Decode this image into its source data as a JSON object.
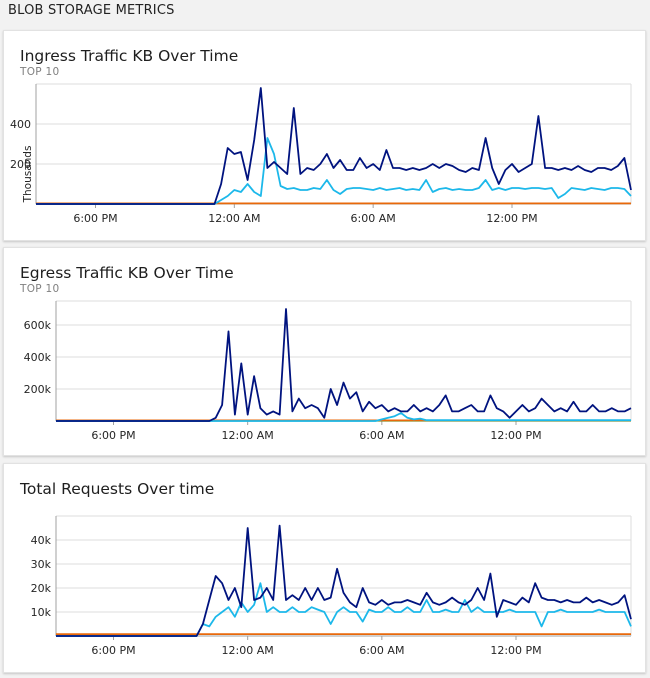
{
  "page": {
    "header": "BLOB STORAGE METRICS"
  },
  "colors": {
    "navy": "#00137f",
    "cyan": "#1cb8ea",
    "orange": "#e8690b",
    "green": "#5aa53f",
    "grid": "#dddddd",
    "axis": "#a0a0a0"
  },
  "chart_data": [
    {
      "type": "line",
      "title": "Ingress Traffic KB Over Time",
      "subtitle": "TOP 10",
      "ylabel": "Thousands",
      "ylim": [
        0,
        600
      ],
      "yticks": [
        200,
        400
      ],
      "ytick_labels": [
        "200",
        "400"
      ],
      "xlim": [
        0,
        90
      ],
      "xticks": [
        9,
        30,
        51,
        72
      ],
      "xtick_labels": [
        "6:00 PM",
        "12:00 AM",
        "6:00 AM",
        "12:00 PM"
      ],
      "grid": true,
      "series": [
        {
          "color": "navy",
          "x": [
            0,
            27,
            28,
            29,
            30,
            31,
            32,
            33,
            34,
            35,
            36,
            37,
            38,
            39,
            40,
            41,
            42,
            43,
            44,
            45,
            46,
            47,
            48,
            49,
            50,
            51,
            52,
            53,
            54,
            55,
            56,
            57,
            58,
            59,
            60,
            61,
            62,
            63,
            64,
            65,
            66,
            67,
            68,
            69,
            70,
            71,
            72,
            73,
            74,
            75,
            76,
            77,
            78,
            79,
            80,
            81,
            82,
            83,
            84,
            85,
            86,
            87,
            88,
            89,
            90
          ],
          "y": [
            0,
            0,
            100,
            280,
            250,
            260,
            120,
            320,
            580,
            180,
            210,
            180,
            150,
            480,
            150,
            180,
            170,
            200,
            250,
            180,
            220,
            170,
            170,
            230,
            180,
            200,
            170,
            270,
            180,
            180,
            170,
            180,
            170,
            180,
            200,
            180,
            200,
            190,
            170,
            160,
            180,
            170,
            330,
            180,
            100,
            170,
            200,
            160,
            180,
            200,
            440,
            180,
            180,
            170,
            180,
            170,
            190,
            170,
            160,
            180,
            180,
            170,
            190,
            230,
            70
          ]
        },
        {
          "color": "cyan",
          "x": [
            0,
            27,
            28,
            29,
            30,
            31,
            32,
            33,
            34,
            35,
            36,
            37,
            38,
            39,
            40,
            41,
            42,
            43,
            44,
            45,
            46,
            47,
            48,
            49,
            50,
            51,
            52,
            53,
            54,
            55,
            56,
            57,
            58,
            59,
            60,
            61,
            62,
            63,
            64,
            65,
            66,
            67,
            68,
            69,
            70,
            71,
            72,
            73,
            74,
            75,
            76,
            77,
            78,
            79,
            80,
            81,
            82,
            83,
            84,
            85,
            86,
            87,
            88,
            89,
            90
          ],
          "y": [
            0,
            0,
            20,
            40,
            70,
            60,
            100,
            60,
            40,
            330,
            250,
            90,
            75,
            80,
            70,
            70,
            80,
            75,
            120,
            70,
            50,
            75,
            80,
            80,
            75,
            70,
            80,
            70,
            75,
            80,
            70,
            75,
            70,
            120,
            60,
            75,
            80,
            70,
            75,
            70,
            70,
            80,
            120,
            70,
            80,
            70,
            80,
            80,
            75,
            80,
            80,
            75,
            80,
            30,
            50,
            80,
            75,
            70,
            80,
            75,
            70,
            80,
            80,
            75,
            40
          ]
        },
        {
          "color": "orange",
          "x": [
            0,
            90
          ],
          "y": [
            3,
            3
          ]
        }
      ]
    },
    {
      "type": "line",
      "title": "Egress Traffic KB Over Time",
      "subtitle": "TOP 10",
      "ylabel": "",
      "ylim": [
        0,
        750000
      ],
      "yticks": [
        200000,
        400000,
        600000
      ],
      "ytick_labels": [
        "200k",
        "400k",
        "600k"
      ],
      "xlim": [
        0,
        90
      ],
      "xticks": [
        9,
        30,
        51,
        72
      ],
      "xtick_labels": [
        "6:00 PM",
        "12:00 AM",
        "6:00 AM",
        "12:00 PM"
      ],
      "grid": true,
      "series": [
        {
          "color": "navy",
          "x": [
            0,
            24,
            25,
            26,
            27,
            28,
            29,
            30,
            31,
            32,
            33,
            34,
            35,
            36,
            37,
            38,
            39,
            40,
            41,
            42,
            43,
            44,
            45,
            46,
            47,
            48,
            49,
            50,
            51,
            52,
            53,
            54,
            55,
            56,
            57,
            58,
            59,
            60,
            61,
            62,
            63,
            64,
            65,
            66,
            67,
            68,
            69,
            70,
            71,
            72,
            73,
            74,
            75,
            76,
            77,
            78,
            79,
            80,
            81,
            82,
            83,
            84,
            85,
            86,
            87,
            88,
            89,
            90
          ],
          "y": [
            0,
            0,
            20000,
            100000,
            560000,
            40000,
            360000,
            40000,
            280000,
            80000,
            40000,
            60000,
            40000,
            700000,
            60000,
            140000,
            80000,
            100000,
            80000,
            20000,
            200000,
            100000,
            240000,
            140000,
            180000,
            60000,
            120000,
            80000,
            100000,
            60000,
            80000,
            60000,
            60000,
            100000,
            60000,
            80000,
            60000,
            100000,
            160000,
            60000,
            60000,
            80000,
            100000,
            60000,
            60000,
            160000,
            80000,
            60000,
            20000,
            60000,
            100000,
            60000,
            80000,
            140000,
            100000,
            60000,
            80000,
            60000,
            120000,
            60000,
            60000,
            100000,
            60000,
            60000,
            80000,
            60000,
            60000,
            80000
          ]
        },
        {
          "color": "cyan",
          "x": [
            0,
            50,
            51,
            52,
            53,
            54,
            55,
            56,
            57,
            58,
            90
          ],
          "y": [
            0,
            0,
            10000,
            20000,
            30000,
            50000,
            20000,
            10000,
            15000,
            5000,
            5000
          ]
        },
        {
          "color": "orange",
          "x": [
            0,
            90
          ],
          "y": [
            4000,
            4000
          ]
        },
        {
          "color": "green",
          "x": [
            0,
            90
          ],
          "y": [
            2000,
            2000
          ]
        }
      ]
    },
    {
      "type": "line",
      "title": "Total Requests Over time",
      "subtitle": "",
      "ylabel": "",
      "ylim": [
        0,
        50000
      ],
      "yticks": [
        10000,
        20000,
        30000,
        40000
      ],
      "ytick_labels": [
        "10k",
        "20k",
        "30k",
        "40k"
      ],
      "xlim": [
        0,
        90
      ],
      "xticks": [
        9,
        30,
        51,
        72
      ],
      "xtick_labels": [
        "6:00 PM",
        "12:00 AM",
        "6:00 AM",
        "12:00 PM"
      ],
      "grid": true,
      "series": [
        {
          "color": "navy",
          "x": [
            0,
            22,
            23,
            24,
            25,
            26,
            27,
            28,
            29,
            30,
            31,
            32,
            33,
            34,
            35,
            36,
            37,
            38,
            39,
            40,
            41,
            42,
            43,
            44,
            45,
            46,
            47,
            48,
            49,
            50,
            51,
            52,
            53,
            54,
            55,
            56,
            57,
            58,
            59,
            60,
            61,
            62,
            63,
            64,
            65,
            66,
            67,
            68,
            69,
            70,
            71,
            72,
            73,
            74,
            75,
            76,
            77,
            78,
            79,
            80,
            81,
            82,
            83,
            84,
            85,
            86,
            87,
            88,
            89,
            90
          ],
          "y": [
            0,
            0,
            5000,
            15000,
            25000,
            22000,
            15000,
            20000,
            12000,
            45000,
            15000,
            16000,
            20000,
            15000,
            46000,
            15000,
            17000,
            15000,
            20000,
            15000,
            20000,
            15000,
            16000,
            28000,
            18000,
            14000,
            12000,
            20000,
            14000,
            13000,
            15000,
            13000,
            14000,
            14000,
            15000,
            14000,
            13000,
            18000,
            14000,
            13000,
            14000,
            16000,
            14000,
            13000,
            15000,
            20000,
            15000,
            26000,
            8000,
            15000,
            14000,
            13000,
            16000,
            14000,
            22000,
            16000,
            15000,
            15000,
            14000,
            15000,
            14000,
            14000,
            16000,
            14000,
            15000,
            14000,
            13000,
            14000,
            17000,
            7000
          ]
        },
        {
          "color": "cyan",
          "x": [
            0,
            22,
            23,
            24,
            25,
            26,
            27,
            28,
            29,
            30,
            31,
            32,
            33,
            34,
            35,
            36,
            37,
            38,
            39,
            40,
            41,
            42,
            43,
            44,
            45,
            46,
            47,
            48,
            49,
            50,
            51,
            52,
            53,
            54,
            55,
            56,
            57,
            58,
            59,
            60,
            61,
            62,
            63,
            64,
            65,
            66,
            67,
            68,
            69,
            70,
            71,
            72,
            73,
            74,
            75,
            76,
            77,
            78,
            79,
            80,
            81,
            82,
            83,
            84,
            85,
            86,
            87,
            88,
            89,
            90
          ],
          "y": [
            0,
            0,
            5000,
            4000,
            8000,
            10000,
            12000,
            8000,
            14000,
            10000,
            13000,
            22000,
            10000,
            12000,
            10000,
            10000,
            12000,
            10000,
            10000,
            12000,
            11000,
            10000,
            5000,
            10000,
            12000,
            10000,
            10000,
            6000,
            11000,
            10000,
            10000,
            12000,
            10000,
            10000,
            12000,
            10000,
            10000,
            15000,
            10000,
            10000,
            11000,
            10000,
            10000,
            15000,
            10000,
            12000,
            10000,
            10000,
            10000,
            10000,
            11000,
            10000,
            10000,
            10000,
            10000,
            4000,
            10000,
            10000,
            11000,
            10000,
            10000,
            10000,
            10000,
            10000,
            11000,
            10000,
            10000,
            10000,
            10000,
            4000
          ]
        },
        {
          "color": "orange",
          "x": [
            0,
            90
          ],
          "y": [
            800,
            800
          ]
        }
      ]
    }
  ]
}
